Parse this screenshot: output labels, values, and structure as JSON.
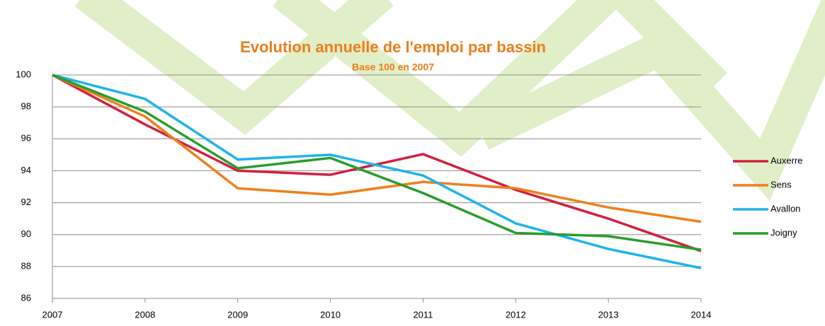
{
  "chart_data": {
    "type": "line",
    "title": "Evolution annuelle de l'emploi par bassin",
    "subtitle": "Base 100 en 2007",
    "x": [
      2007,
      2008,
      2009,
      2010,
      2011,
      2012,
      2013,
      2014
    ],
    "xlim": [
      2007,
      2014
    ],
    "xticks": [
      2007,
      2008,
      2009,
      2010,
      2011,
      2012,
      2013,
      2014
    ],
    "ylim": [
      86,
      100
    ],
    "yticks": [
      86,
      88,
      90,
      92,
      94,
      96,
      98,
      100
    ],
    "grid": true,
    "legend": "right",
    "series": [
      {
        "name": "Auxerre",
        "color": "#d0213f",
        "values": [
          100,
          96.9,
          94.0,
          93.75,
          95.04,
          92.8,
          91.0,
          88.97
        ]
      },
      {
        "name": "Sens",
        "color": "#f07f1e",
        "values": [
          100,
          97.4,
          92.9,
          92.5,
          93.3,
          92.9,
          91.7,
          90.8
        ]
      },
      {
        "name": "Avallon",
        "color": "#1fb4ea",
        "values": [
          100,
          98.5,
          94.7,
          95.0,
          93.7,
          90.7,
          89.1,
          87.9
        ]
      },
      {
        "name": "Joigny",
        "color": "#2a9d2c",
        "values": [
          100,
          97.7,
          94.15,
          94.8,
          92.6,
          90.1,
          89.9,
          89.05
        ]
      }
    ]
  }
}
